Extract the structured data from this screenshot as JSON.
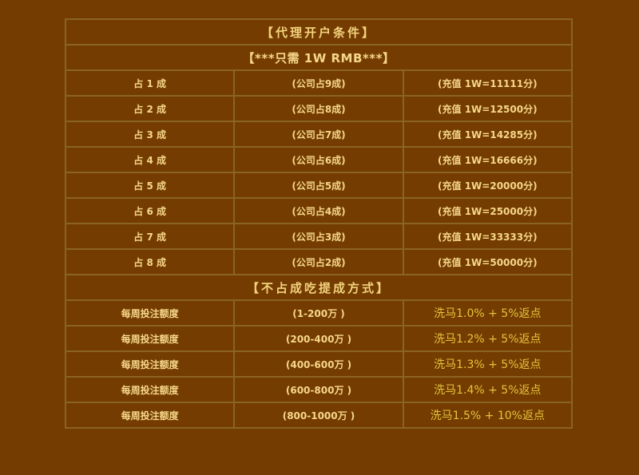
{
  "title": "【代理开户条件】",
  "subtitle": "【***只需 1W RMB***】",
  "share_rows": [
    {
      "share": "占 1 成",
      "company": "(公司占9成)",
      "recharge": "(充值 1W=11111分)"
    },
    {
      "share": "占 2 成",
      "company": "(公司占8成)",
      "recharge": "(充值 1W=12500分)"
    },
    {
      "share": "占 3 成",
      "company": "(公司占7成)",
      "recharge": "(充值 1W=14285分)"
    },
    {
      "share": "占 4 成",
      "company": "(公司占6成)",
      "recharge": "(充值 1W=16666分)"
    },
    {
      "share": "占 5 成",
      "company": "(公司占5成)",
      "recharge": "(充值 1W=20000分)"
    },
    {
      "share": "占 6 成",
      "company": "(公司占4成)",
      "recharge": "(充值 1W=25000分)"
    },
    {
      "share": "占 7 成",
      "company": "(公司占3成)",
      "recharge": "(充值 1W=33333分)"
    },
    {
      "share": "占 8 成",
      "company": "(公司占2成)",
      "recharge": "(充值 1W=50000分)"
    }
  ],
  "section2_title": "【不占成吃提成方式】",
  "commission_rows": [
    {
      "label": "每周投注额度",
      "range": "(1-200万 )",
      "rate": "洗马1.0% + 5%返点"
    },
    {
      "label": "每周投注额度",
      "range": "(200-400万 )",
      "rate": "洗马1.2% + 5%返点"
    },
    {
      "label": "每周投注额度",
      "range": "(400-600万 )",
      "rate": "洗马1.3% + 5%返点"
    },
    {
      "label": "每周投注额度",
      "range": "(600-800万 )",
      "rate": "洗马1.4% + 5%返点"
    },
    {
      "label": "每周投注额度",
      "range": "(800-1000万 )",
      "rate": "洗马1.5% + 10%返点"
    }
  ],
  "colors": {
    "background": "#743c00",
    "border": "#8a6422",
    "text": "#f6d78a",
    "rate_text": "#e6c33c"
  }
}
